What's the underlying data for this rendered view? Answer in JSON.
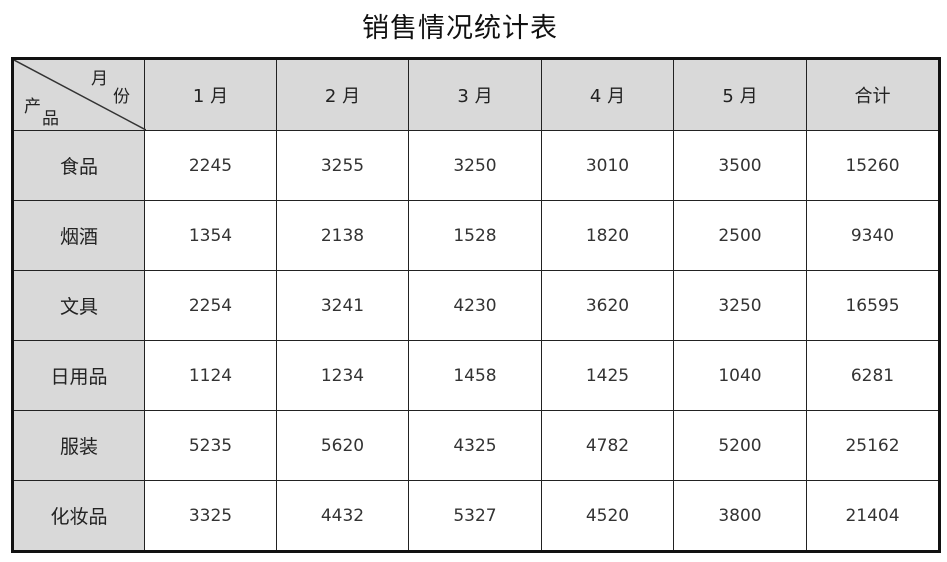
{
  "title": "销售情况统计表",
  "corner": {
    "top_label_1": "月",
    "top_label_2": "份",
    "bottom_label_1": "产",
    "bottom_label_2": "品"
  },
  "columns": [
    "1 月",
    "2 月",
    "3 月",
    "4 月",
    "5 月",
    "合计"
  ],
  "rows": [
    {
      "label": "食品",
      "values": [
        "2245",
        "3255",
        "3250",
        "3010",
        "3500",
        "15260"
      ]
    },
    {
      "label": "烟酒",
      "values": [
        "1354",
        "2138",
        "1528",
        "1820",
        "2500",
        "9340"
      ]
    },
    {
      "label": "文具",
      "values": [
        "2254",
        "3241",
        "4230",
        "3620",
        "3250",
        "16595"
      ]
    },
    {
      "label": "日用品",
      "values": [
        "1124",
        "1234",
        "1458",
        "1425",
        "1040",
        "6281"
      ]
    },
    {
      "label": "服装",
      "values": [
        "5235",
        "5620",
        "4325",
        "4782",
        "5200",
        "25162"
      ]
    },
    {
      "label": "化妆品",
      "values": [
        "3325",
        "4432",
        "5327",
        "4520",
        "3800",
        "21404"
      ]
    }
  ],
  "colors": {
    "header_bg": "#d9d9d9",
    "border": "#111111"
  }
}
